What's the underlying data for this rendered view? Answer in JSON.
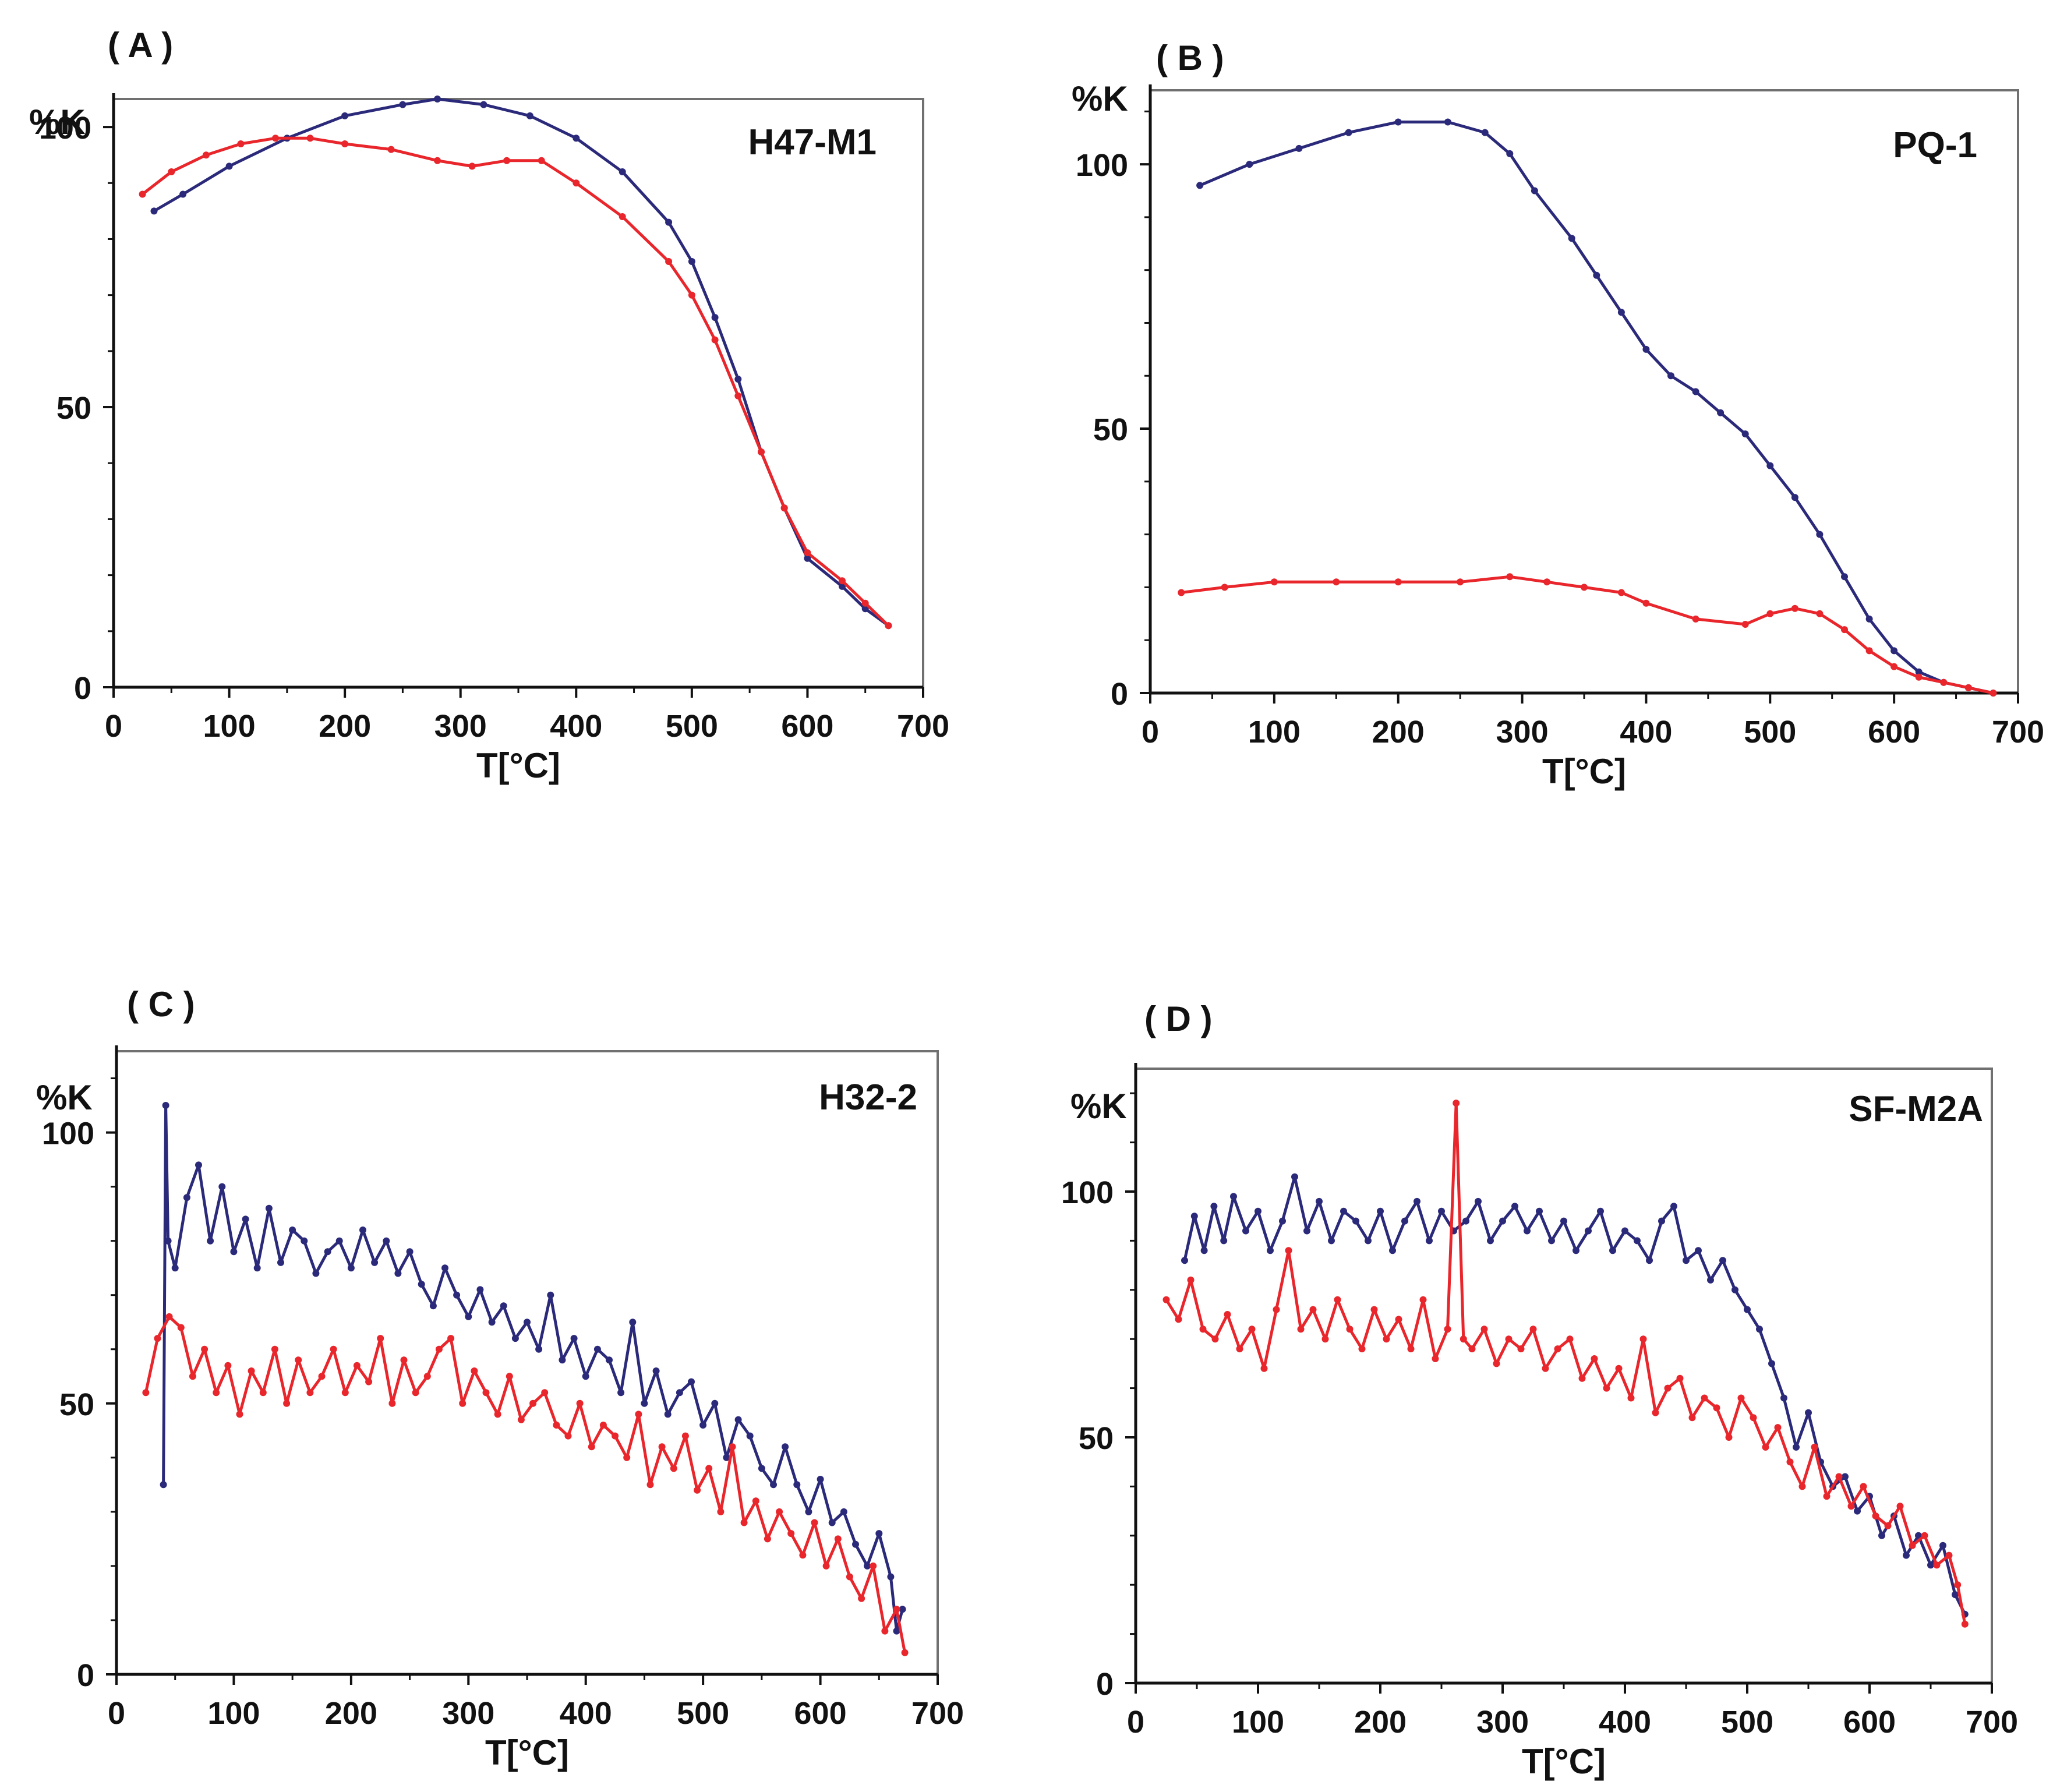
{
  "figure": {
    "colors": {
      "series_1": "#2b2a7a",
      "series_2": "#e8262b",
      "frame": "#707070",
      "axis": "#111111"
    }
  },
  "chart_data": [
    {
      "panel": "( A )",
      "type": "line",
      "title": "H47-M1",
      "ylabel": "%K",
      "xlabel": "T[°C]",
      "xlim": [
        0,
        700
      ],
      "ylim": [
        0,
        105
      ],
      "xticks": [
        0,
        100,
        200,
        300,
        400,
        500,
        600,
        700
      ],
      "yticks": [
        0,
        50,
        100
      ],
      "grid": false,
      "series": [
        {
          "name": "blue",
          "color": "#2b2a7a",
          "x": [
            35,
            60,
            100,
            150,
            200,
            250,
            280,
            320,
            360,
            400,
            440,
            480,
            500,
            520,
            540,
            560,
            580,
            600,
            630,
            650,
            670
          ],
          "y": [
            85,
            88,
            93,
            98,
            102,
            104,
            105,
            104,
            102,
            98,
            92,
            83,
            76,
            66,
            55,
            42,
            32,
            23,
            18,
            14,
            11
          ]
        },
        {
          "name": "red",
          "color": "#e8262b",
          "x": [
            25,
            50,
            80,
            110,
            140,
            170,
            200,
            240,
            280,
            310,
            340,
            370,
            400,
            440,
            480,
            500,
            520,
            540,
            560,
            580,
            600,
            630,
            650,
            670
          ],
          "y": [
            88,
            92,
            95,
            97,
            98,
            98,
            97,
            96,
            94,
            93,
            94,
            94,
            90,
            84,
            76,
            70,
            62,
            52,
            42,
            32,
            24,
            19,
            15,
            11
          ]
        }
      ]
    },
    {
      "panel": "( B )",
      "type": "line",
      "title": "PQ-1",
      "ylabel": "%K",
      "xlabel": "T[°C]",
      "xlim": [
        0,
        700
      ],
      "ylim": [
        0,
        114
      ],
      "xticks": [
        0,
        100,
        200,
        300,
        400,
        500,
        600,
        700
      ],
      "yticks": [
        0,
        50,
        100
      ],
      "grid": false,
      "series": [
        {
          "name": "blue",
          "color": "#2b2a7a",
          "x": [
            40,
            80,
            120,
            160,
            200,
            240,
            270,
            290,
            310,
            340,
            360,
            380,
            400,
            420,
            440,
            460,
            480,
            500,
            520,
            540,
            560,
            580,
            600,
            620,
            640,
            660,
            680
          ],
          "y": [
            96,
            100,
            103,
            106,
            108,
            108,
            106,
            102,
            95,
            86,
            79,
            72,
            65,
            60,
            57,
            53,
            49,
            43,
            37,
            30,
            22,
            14,
            8,
            4,
            2,
            1,
            0
          ]
        },
        {
          "name": "red",
          "color": "#e8262b",
          "x": [
            25,
            60,
            100,
            150,
            200,
            250,
            290,
            320,
            350,
            380,
            400,
            440,
            480,
            500,
            520,
            540,
            560,
            580,
            600,
            620,
            640,
            660,
            680
          ],
          "y": [
            19,
            20,
            21,
            21,
            21,
            21,
            22,
            21,
            20,
            19,
            17,
            14,
            13,
            15,
            16,
            15,
            12,
            8,
            5,
            3,
            2,
            1,
            0
          ]
        }
      ]
    },
    {
      "panel": "( C )",
      "type": "line",
      "title": "H32-2",
      "ylabel": "%K",
      "xlabel": "T[°C]",
      "xlim": [
        0,
        700
      ],
      "ylim": [
        0,
        115
      ],
      "xticks": [
        0,
        100,
        200,
        300,
        400,
        500,
        600,
        700
      ],
      "yticks": [
        0,
        50,
        100
      ],
      "grid": false,
      "series": [
        {
          "name": "blue",
          "color": "#2b2a7a",
          "x": [
            40,
            42,
            44,
            50,
            60,
            70,
            80,
            90,
            100,
            110,
            120,
            130,
            140,
            150,
            160,
            170,
            180,
            190,
            200,
            210,
            220,
            230,
            240,
            250,
            260,
            270,
            280,
            290,
            300,
            310,
            320,
            330,
            340,
            350,
            360,
            370,
            380,
            390,
            400,
            410,
            420,
            430,
            440,
            450,
            460,
            470,
            480,
            490,
            500,
            510,
            520,
            530,
            540,
            550,
            560,
            570,
            580,
            590,
            600,
            610,
            620,
            630,
            640,
            650,
            660,
            665,
            670
          ],
          "y": [
            35,
            105,
            80,
            75,
            88,
            94,
            80,
            90,
            78,
            84,
            75,
            86,
            76,
            82,
            80,
            74,
            78,
            80,
            75,
            82,
            76,
            80,
            74,
            78,
            72,
            68,
            75,
            70,
            66,
            71,
            65,
            68,
            62,
            65,
            60,
            70,
            58,
            62,
            55,
            60,
            58,
            52,
            65,
            50,
            56,
            48,
            52,
            54,
            46,
            50,
            40,
            47,
            44,
            38,
            35,
            42,
            35,
            30,
            36,
            28,
            30,
            24,
            20,
            26,
            18,
            8,
            12
          ]
        },
        {
          "name": "red",
          "color": "#e8262b",
          "x": [
            25,
            35,
            45,
            55,
            65,
            75,
            85,
            95,
            105,
            115,
            125,
            135,
            145,
            155,
            165,
            175,
            185,
            195,
            205,
            215,
            225,
            235,
            245,
            255,
            265,
            275,
            285,
            295,
            305,
            315,
            325,
            335,
            345,
            355,
            365,
            375,
            385,
            395,
            405,
            415,
            425,
            435,
            445,
            455,
            465,
            475,
            485,
            495,
            505,
            515,
            525,
            535,
            545,
            555,
            565,
            575,
            585,
            595,
            605,
            615,
            625,
            635,
            645,
            655,
            665,
            672
          ],
          "y": [
            52,
            62,
            66,
            64,
            55,
            60,
            52,
            57,
            48,
            56,
            52,
            60,
            50,
            58,
            52,
            55,
            60,
            52,
            57,
            54,
            62,
            50,
            58,
            52,
            55,
            60,
            62,
            50,
            56,
            52,
            48,
            55,
            47,
            50,
            52,
            46,
            44,
            50,
            42,
            46,
            44,
            40,
            48,
            35,
            42,
            38,
            44,
            34,
            38,
            30,
            42,
            28,
            32,
            25,
            30,
            26,
            22,
            28,
            20,
            25,
            18,
            14,
            20,
            8,
            12,
            4
          ]
        }
      ]
    },
    {
      "panel": "( D )",
      "type": "line",
      "title": "SF-M2A",
      "ylabel": "%K",
      "xlabel": "T[°C]",
      "xlim": [
        0,
        700
      ],
      "ylim": [
        0,
        125
      ],
      "xticks": [
        0,
        100,
        200,
        300,
        400,
        500,
        600,
        700
      ],
      "yticks": [
        0,
        50,
        100
      ],
      "grid": false,
      "series": [
        {
          "name": "blue",
          "color": "#2b2a7a",
          "x": [
            40,
            48,
            56,
            64,
            72,
            80,
            90,
            100,
            110,
            120,
            130,
            140,
            150,
            160,
            170,
            180,
            190,
            200,
            210,
            220,
            230,
            240,
            250,
            260,
            270,
            280,
            290,
            300,
            310,
            320,
            330,
            340,
            350,
            360,
            370,
            380,
            390,
            400,
            410,
            420,
            430,
            440,
            450,
            460,
            470,
            480,
            490,
            500,
            510,
            520,
            530,
            540,
            550,
            560,
            570,
            580,
            590,
            600,
            610,
            620,
            630,
            640,
            650,
            660,
            670,
            678
          ],
          "y": [
            86,
            95,
            88,
            97,
            90,
            99,
            92,
            96,
            88,
            94,
            103,
            92,
            98,
            90,
            96,
            94,
            90,
            96,
            88,
            94,
            98,
            90,
            96,
            92,
            94,
            98,
            90,
            94,
            97,
            92,
            96,
            90,
            94,
            88,
            92,
            96,
            88,
            92,
            90,
            86,
            94,
            97,
            86,
            88,
            82,
            86,
            80,
            76,
            72,
            65,
            58,
            48,
            55,
            45,
            40,
            42,
            35,
            38,
            30,
            34,
            26,
            30,
            24,
            28,
            18,
            14
          ]
        },
        {
          "name": "red",
          "color": "#e8262b",
          "x": [
            25,
            35,
            45,
            55,
            65,
            75,
            85,
            95,
            105,
            115,
            125,
            135,
            145,
            155,
            165,
            175,
            185,
            195,
            205,
            215,
            225,
            235,
            245,
            255,
            262,
            268,
            275,
            285,
            295,
            305,
            315,
            325,
            335,
            345,
            355,
            365,
            375,
            385,
            395,
            405,
            415,
            425,
            435,
            445,
            455,
            465,
            475,
            485,
            495,
            505,
            515,
            525,
            535,
            545,
            555,
            565,
            575,
            585,
            595,
            605,
            615,
            625,
            635,
            645,
            655,
            665,
            672,
            678
          ],
          "y": [
            78,
            74,
            82,
            72,
            70,
            75,
            68,
            72,
            64,
            76,
            88,
            72,
            76,
            70,
            78,
            72,
            68,
            76,
            70,
            74,
            68,
            78,
            66,
            72,
            118,
            70,
            68,
            72,
            65,
            70,
            68,
            72,
            64,
            68,
            70,
            62,
            66,
            60,
            64,
            58,
            70,
            55,
            60,
            62,
            54,
            58,
            56,
            50,
            58,
            54,
            48,
            52,
            45,
            40,
            48,
            38,
            42,
            36,
            40,
            34,
            32,
            36,
            28,
            30,
            24,
            26,
            20,
            12
          ]
        }
      ]
    }
  ]
}
